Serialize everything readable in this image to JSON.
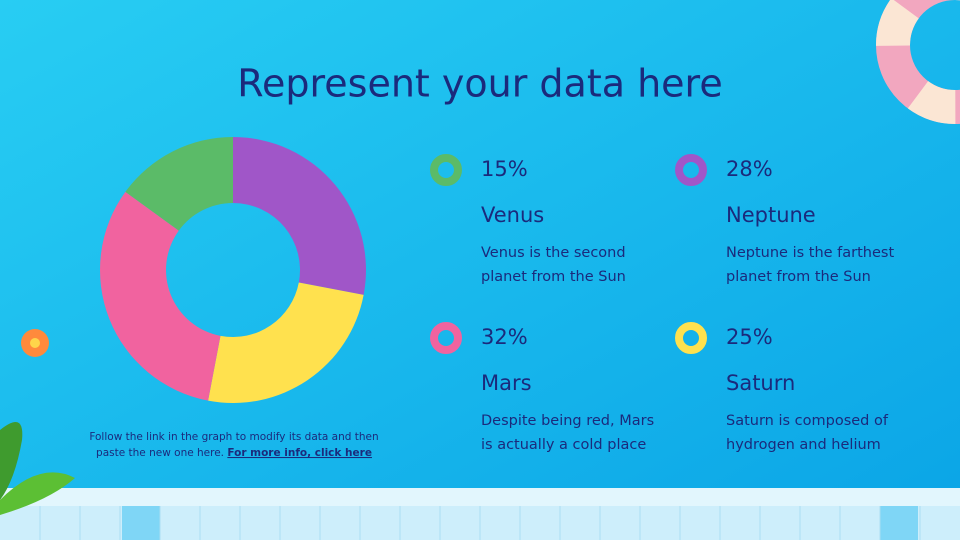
{
  "title": "Represent your data here",
  "chart_data": {
    "type": "donut",
    "categories": [
      "Venus",
      "Neptune",
      "Mars",
      "Saturn"
    ],
    "values": [
      15,
      28,
      32,
      25
    ],
    "value_labels": [
      "15%",
      "28%",
      "32%",
      "25%"
    ],
    "colors": [
      "#5bbb68",
      "#a056c8",
      "#f1639f",
      "#ffe14e"
    ]
  },
  "descriptions": [
    [
      "Venus is the second",
      "planet from the Sun"
    ],
    [
      "Neptune is the farthest",
      "planet from the Sun"
    ],
    [
      "Despite being red, Mars",
      "is actually a cold place"
    ],
    [
      "Saturn is composed of",
      "hydrogen and helium"
    ]
  ],
  "note": {
    "lines": [
      "Follow the link in the graph to modify its data and then",
      "paste the new one here."
    ],
    "link": "For more info, click here"
  }
}
